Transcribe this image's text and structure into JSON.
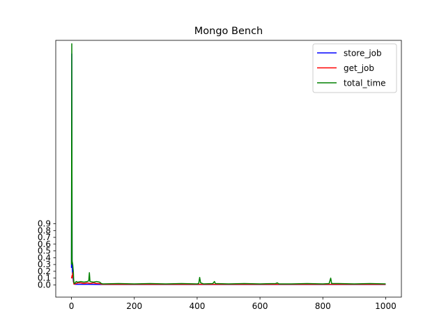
{
  "chart_data": {
    "type": "line",
    "title": "Mongo Bench",
    "xlabel": "",
    "ylabel": "",
    "xlim": [
      -50,
      1050
    ],
    "ylim": [
      -0.18,
      3.6
    ],
    "x_ticks": [
      0,
      200,
      400,
      600,
      800,
      1000
    ],
    "y_ticks": [
      0.0,
      0.1,
      0.2,
      0.3,
      0.4,
      0.5,
      0.6,
      0.7,
      0.8,
      0.9
    ],
    "legend_position": "top-right",
    "grid": false,
    "series": [
      {
        "name": "store_job",
        "color": "#0000ff",
        "points": [
          [
            0,
            0.25
          ],
          [
            1,
            3.4
          ],
          [
            2,
            0.3
          ],
          [
            3,
            0.18
          ],
          [
            4,
            0.14
          ],
          [
            5,
            0.1
          ],
          [
            6,
            0.05
          ],
          [
            8,
            0.02
          ],
          [
            10,
            0.01
          ],
          [
            20,
            0.008
          ],
          [
            50,
            0.008
          ],
          [
            100,
            0.006
          ],
          [
            200,
            0.006
          ],
          [
            300,
            0.006
          ],
          [
            400,
            0.006
          ],
          [
            500,
            0.006
          ],
          [
            600,
            0.006
          ],
          [
            700,
            0.006
          ],
          [
            800,
            0.006
          ],
          [
            900,
            0.006
          ],
          [
            1000,
            0.006
          ]
        ]
      },
      {
        "name": "get_job",
        "color": "#ff0000",
        "points": [
          [
            0,
            0.12
          ],
          [
            1,
            0.1
          ],
          [
            2,
            0.14
          ],
          [
            3,
            0.12
          ],
          [
            4,
            0.18
          ],
          [
            5,
            0.14
          ],
          [
            6,
            0.1
          ],
          [
            7,
            0.03
          ],
          [
            8,
            0.01
          ],
          [
            15,
            0.02
          ],
          [
            20,
            0.03
          ],
          [
            30,
            0.03
          ],
          [
            40,
            0.02
          ],
          [
            50,
            0.03
          ],
          [
            60,
            0.02
          ],
          [
            70,
            0.03
          ],
          [
            80,
            0.02
          ],
          [
            90,
            0.02
          ],
          [
            95,
            0.01
          ],
          [
            100,
            0.008
          ],
          [
            200,
            0.008
          ],
          [
            300,
            0.008
          ],
          [
            400,
            0.008
          ],
          [
            500,
            0.008
          ],
          [
            600,
            0.008
          ],
          [
            700,
            0.008
          ],
          [
            800,
            0.008
          ],
          [
            900,
            0.008
          ],
          [
            1000,
            0.008
          ]
        ]
      },
      {
        "name": "total_time",
        "color": "#008000",
        "points": [
          [
            0,
            0.3
          ],
          [
            1,
            3.55
          ],
          [
            2,
            0.35
          ],
          [
            3,
            0.33
          ],
          [
            4,
            0.3
          ],
          [
            5,
            0.25
          ],
          [
            6,
            0.2
          ],
          [
            7,
            0.08
          ],
          [
            8,
            0.03
          ],
          [
            10,
            0.02
          ],
          [
            15,
            0.05
          ],
          [
            20,
            0.04
          ],
          [
            30,
            0.05
          ],
          [
            40,
            0.04
          ],
          [
            50,
            0.05
          ],
          [
            55,
            0.06
          ],
          [
            57,
            0.18
          ],
          [
            59,
            0.05
          ],
          [
            70,
            0.04
          ],
          [
            80,
            0.05
          ],
          [
            90,
            0.04
          ],
          [
            95,
            0.02
          ],
          [
            100,
            0.015
          ],
          [
            150,
            0.02
          ],
          [
            200,
            0.015
          ],
          [
            250,
            0.02
          ],
          [
            300,
            0.015
          ],
          [
            350,
            0.02
          ],
          [
            400,
            0.015
          ],
          [
            405,
            0.02
          ],
          [
            408,
            0.11
          ],
          [
            411,
            0.03
          ],
          [
            420,
            0.015
          ],
          [
            450,
            0.02
          ],
          [
            455,
            0.05
          ],
          [
            458,
            0.02
          ],
          [
            500,
            0.015
          ],
          [
            550,
            0.02
          ],
          [
            600,
            0.015
          ],
          [
            650,
            0.02
          ],
          [
            655,
            0.03
          ],
          [
            660,
            0.015
          ],
          [
            700,
            0.015
          ],
          [
            750,
            0.02
          ],
          [
            800,
            0.015
          ],
          [
            820,
            0.02
          ],
          [
            825,
            0.1
          ],
          [
            828,
            0.02
          ],
          [
            850,
            0.02
          ],
          [
            900,
            0.015
          ],
          [
            950,
            0.02
          ],
          [
            1000,
            0.015
          ]
        ]
      }
    ]
  }
}
